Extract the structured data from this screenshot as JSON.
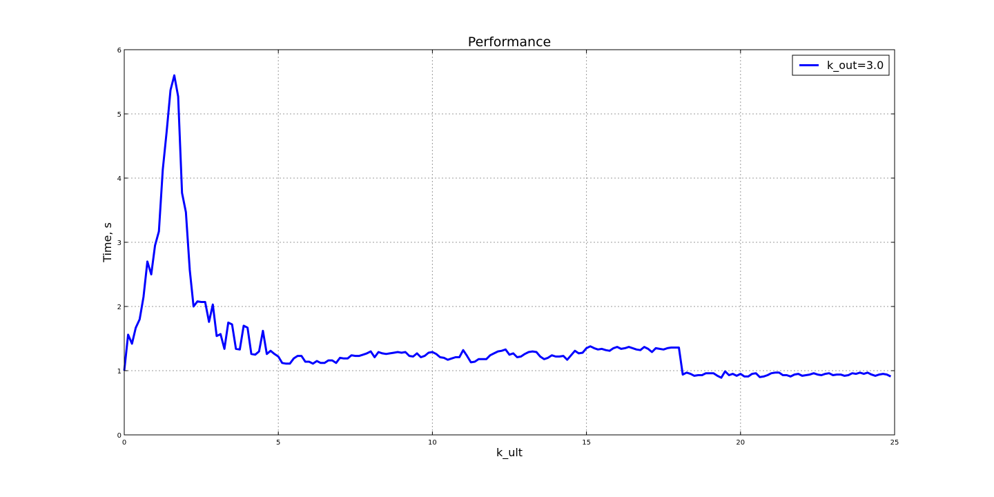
{
  "chart_data": {
    "type": "line",
    "title": "Performance",
    "xlabel": "k_ult",
    "ylabel": "Time, s",
    "xlim": [
      0,
      25
    ],
    "ylim": [
      0,
      6
    ],
    "xticks": [
      0,
      5,
      10,
      15,
      20,
      25
    ],
    "yticks": [
      0,
      1,
      2,
      3,
      4,
      5,
      6
    ],
    "grid": true,
    "legend_position": "top-right",
    "series": [
      {
        "name": "k_out=3.0",
        "color": "#0000ff",
        "x": [
          0.0,
          0.125,
          0.25,
          0.375,
          0.5,
          0.625,
          0.75,
          0.875,
          1.0,
          1.125,
          1.25,
          1.375,
          1.5,
          1.625,
          1.75,
          1.875,
          2.0,
          2.125,
          2.25,
          2.375,
          2.5,
          2.625,
          2.75,
          2.875,
          3.0,
          3.125,
          3.25,
          3.375,
          3.5,
          3.625,
          3.75,
          3.875,
          4.0,
          4.125,
          4.25,
          4.375,
          4.5,
          4.625,
          4.75,
          4.875,
          5.0,
          5.125,
          5.25,
          5.375,
          5.5,
          5.625,
          5.75,
          5.875,
          6.0,
          6.125,
          6.25,
          6.375,
          6.5,
          6.625,
          6.75,
          6.875,
          7.0,
          7.125,
          7.25,
          7.375,
          7.5,
          7.625,
          7.75,
          7.875,
          8.0,
          8.125,
          8.25,
          8.375,
          8.5,
          8.625,
          8.75,
          8.875,
          9.0,
          9.125,
          9.25,
          9.375,
          9.5,
          9.625,
          9.75,
          9.875,
          10.0,
          10.125,
          10.25,
          10.375,
          10.5,
          10.625,
          10.75,
          10.875,
          11.0,
          11.125,
          11.25,
          11.375,
          11.5,
          11.625,
          11.75,
          11.875,
          12.0,
          12.125,
          12.25,
          12.375,
          12.5,
          12.625,
          12.75,
          12.875,
          13.0,
          13.125,
          13.25,
          13.375,
          13.5,
          13.625,
          13.75,
          13.875,
          14.0,
          14.125,
          14.25,
          14.375,
          14.5,
          14.625,
          14.75,
          14.875,
          15.0,
          15.125,
          15.25,
          15.375,
          15.5,
          15.625,
          15.75,
          15.875,
          16.0,
          16.125,
          16.25,
          16.375,
          16.5,
          16.625,
          16.75,
          16.875,
          17.0,
          17.125,
          17.25,
          17.375,
          17.5,
          17.625,
          17.75,
          17.875,
          18.0,
          18.125,
          18.25,
          18.375,
          18.5,
          18.625,
          18.75,
          18.875,
          19.0,
          19.125,
          19.25,
          19.375,
          19.5,
          19.625,
          19.75,
          19.875,
          20.0,
          20.125,
          20.25,
          20.375,
          20.5,
          20.625,
          20.75,
          20.875,
          21.0,
          21.125,
          21.25,
          21.375,
          21.5,
          21.625,
          21.75,
          21.875,
          22.0,
          22.125,
          22.25,
          22.375,
          22.5,
          22.625,
          22.75,
          22.875,
          23.0,
          23.125,
          23.25,
          23.375,
          23.5,
          23.625,
          23.75,
          23.875,
          24.0,
          24.125,
          24.25,
          24.375,
          24.5,
          24.625,
          24.75,
          24.875
        ],
        "y": [
          1.0,
          1.56,
          1.42,
          1.67,
          1.8,
          2.15,
          2.7,
          2.5,
          2.95,
          3.17,
          4.13,
          4.72,
          5.37,
          5.6,
          5.27,
          3.77,
          3.47,
          2.57,
          2.0,
          2.08,
          2.07,
          2.07,
          1.76,
          2.03,
          1.54,
          1.57,
          1.34,
          1.75,
          1.72,
          1.34,
          1.33,
          1.7,
          1.67,
          1.26,
          1.25,
          1.3,
          1.62,
          1.26,
          1.31,
          1.26,
          1.22,
          1.12,
          1.11,
          1.11,
          1.19,
          1.23,
          1.23,
          1.14,
          1.14,
          1.11,
          1.15,
          1.12,
          1.12,
          1.16,
          1.16,
          1.12,
          1.2,
          1.19,
          1.19,
          1.24,
          1.23,
          1.23,
          1.25,
          1.27,
          1.3,
          1.21,
          1.29,
          1.27,
          1.26,
          1.27,
          1.28,
          1.29,
          1.28,
          1.29,
          1.23,
          1.22,
          1.27,
          1.21,
          1.23,
          1.28,
          1.29,
          1.26,
          1.21,
          1.2,
          1.17,
          1.19,
          1.21,
          1.21,
          1.32,
          1.23,
          1.13,
          1.14,
          1.18,
          1.18,
          1.18,
          1.24,
          1.27,
          1.3,
          1.31,
          1.33,
          1.25,
          1.27,
          1.21,
          1.22,
          1.26,
          1.29,
          1.3,
          1.29,
          1.22,
          1.18,
          1.2,
          1.24,
          1.22,
          1.22,
          1.23,
          1.17,
          1.24,
          1.31,
          1.27,
          1.28,
          1.35,
          1.38,
          1.35,
          1.33,
          1.34,
          1.32,
          1.31,
          1.35,
          1.37,
          1.34,
          1.35,
          1.37,
          1.35,
          1.33,
          1.32,
          1.37,
          1.34,
          1.29,
          1.35,
          1.34,
          1.33,
          1.35,
          1.36,
          1.36,
          1.36,
          0.94,
          0.97,
          0.95,
          0.92,
          0.93,
          0.93,
          0.96,
          0.96,
          0.96,
          0.92,
          0.89,
          0.99,
          0.93,
          0.95,
          0.92,
          0.95,
          0.91,
          0.91,
          0.95,
          0.96,
          0.9,
          0.91,
          0.93,
          0.96,
          0.97,
          0.97,
          0.93,
          0.93,
          0.91,
          0.94,
          0.95,
          0.92,
          0.93,
          0.94,
          0.96,
          0.94,
          0.93,
          0.95,
          0.96,
          0.93,
          0.94,
          0.94,
          0.92,
          0.93,
          0.96,
          0.95,
          0.97,
          0.95,
          0.97,
          0.94,
          0.92,
          0.94,
          0.95,
          0.94,
          0.91
        ]
      }
    ]
  }
}
